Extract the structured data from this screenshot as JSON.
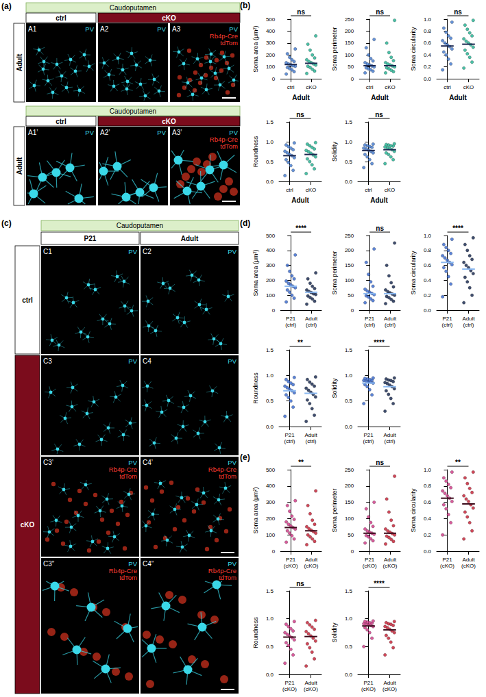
{
  "figure": {
    "a": {
      "letter": "(a)",
      "region": "Caudoputamen",
      "groups": [
        "ctrl",
        "cKO"
      ],
      "age": "Adult",
      "rows": [
        [
          {
            "id": "A1",
            "channels": [
              "PV"
            ]
          },
          {
            "id": "A2",
            "channels": [
              "PV"
            ]
          },
          {
            "id": "A3",
            "channels": [
              "PV",
              "Rb4p-Cre",
              "tdTom"
            ]
          }
        ],
        [
          {
            "id": "A1’",
            "channels": [
              "PV"
            ]
          },
          {
            "id": "A2’",
            "channels": [
              "PV"
            ]
          },
          {
            "id": "A3’",
            "channels": [
              "PV",
              "Rb4p-Cre",
              "tdTom"
            ]
          }
        ]
      ]
    },
    "b": {
      "letter": "(b)"
    },
    "c": {
      "letter": "(c)",
      "region": "Caudoputamen",
      "ages": [
        "P21",
        "Adult"
      ],
      "rows": [
        {
          "group": "ctrl",
          "cells": [
            {
              "id": "C1",
              "channels": [
                "PV"
              ]
            },
            {
              "id": "C2",
              "channels": [
                "PV"
              ]
            }
          ]
        },
        {
          "group": "cKO",
          "cells": [
            {
              "id": "C3",
              "channels": [
                "PV"
              ]
            },
            {
              "id": "C4",
              "channels": [
                "PV"
              ]
            }
          ]
        },
        {
          "group": "cKO",
          "cells": [
            {
              "id": "C3’",
              "channels": [
                "PV",
                "Rb4p-Cre",
                "tdTom"
              ]
            },
            {
              "id": "C4’",
              "channels": [
                "PV",
                "Rb4p-Cre",
                "tdTom"
              ]
            }
          ]
        },
        {
          "group": "cKO",
          "cells": [
            {
              "id": "C3”",
              "channels": [
                "PV",
                "Rb4p-Cre",
                "tdTom"
              ]
            },
            {
              "id": "C4”",
              "channels": [
                "PV",
                "Rb4p-Cre",
                "tdTom"
              ]
            }
          ]
        }
      ]
    },
    "d": {
      "letter": "(d)"
    },
    "e": {
      "letter": "(e)"
    }
  },
  "chart_data": [
    {
      "type": "scatter",
      "y_label": "Soma area (μm²)",
      "x_label": "Adult",
      "categories": [
        "ctrl",
        "cKO"
      ],
      "colors": [
        "#4a7fd0",
        "#2bb597"
      ],
      "values": [
        [
          40,
          60,
          75,
          85,
          95,
          105,
          110,
          118,
          125,
          135,
          145,
          160,
          180,
          210,
          250
        ],
        [
          45,
          65,
          80,
          95,
          105,
          115,
          125,
          135,
          145,
          160,
          175,
          200,
          240,
          290,
          360
        ]
      ],
      "means": [
        120,
        130
      ],
      "ylim": [
        0,
        500
      ],
      "yticks": [
        0,
        100,
        200,
        300,
        400,
        500
      ],
      "annotation": "ns"
    },
    {
      "type": "scatter",
      "y_label": "Soma perimeter",
      "x_label": "Adult",
      "categories": [
        "ctrl",
        "cKO"
      ],
      "colors": [
        "#4a7fd0",
        "#2bb597"
      ],
      "values": [
        [
          25,
          32,
          38,
          42,
          46,
          50,
          54,
          58,
          62,
          68,
          75,
          85,
          100,
          130,
          165
        ],
        [
          25,
          30,
          36,
          42,
          46,
          50,
          54,
          58,
          62,
          68,
          76,
          90,
          110,
          150,
          245
        ]
      ],
      "means": [
        55,
        55
      ],
      "ylim": [
        0,
        250
      ],
      "yticks": [
        0,
        50,
        100,
        150,
        200,
        250
      ],
      "annotation": "ns"
    },
    {
      "type": "scatter",
      "y_label": "Soma circularity",
      "x_label": "Adult",
      "categories": [
        "ctrl",
        "cKO"
      ],
      "colors": [
        "#4a7fd0",
        "#2bb597"
      ],
      "values": [
        [
          0.15,
          0.25,
          0.33,
          0.4,
          0.45,
          0.5,
          0.54,
          0.57,
          0.6,
          0.64,
          0.68,
          0.72,
          0.78,
          0.85,
          0.95
        ],
        [
          0.18,
          0.28,
          0.36,
          0.42,
          0.48,
          0.53,
          0.57,
          0.6,
          0.63,
          0.67,
          0.72,
          0.77,
          0.83,
          0.9,
          0.98
        ]
      ],
      "means": [
        0.55,
        0.58
      ],
      "ylim": [
        0,
        1
      ],
      "yticks": [
        {
          "value": 0,
          "label": "0.0"
        },
        0.2,
        0.4,
        0.6,
        0.8,
        {
          "value": 1,
          "label": "1.0"
        }
      ],
      "annotation": "ns"
    },
    {
      "type": "scatter",
      "y_label": "Roundness",
      "x_label": "Adult",
      "categories": [
        "ctrl",
        "cKO"
      ],
      "colors": [
        "#4a7fd0",
        "#2bb597"
      ],
      "values": [
        [
          0.15,
          0.28,
          0.4,
          0.48,
          0.55,
          0.6,
          0.65,
          0.68,
          0.72,
          0.76,
          0.8,
          0.84,
          0.88,
          0.92,
          0.97
        ],
        [
          0.2,
          0.32,
          0.42,
          0.5,
          0.57,
          0.62,
          0.67,
          0.71,
          0.75,
          0.78,
          0.82,
          0.86,
          0.9,
          0.94,
          0.98
        ]
      ],
      "means": [
        0.65,
        0.68
      ],
      "ylim": [
        0,
        1.5
      ],
      "yticks": [
        {
          "value": 0,
          "label": "0.0"
        },
        0.5,
        {
          "value": 1,
          "label": "1.0"
        },
        1.5
      ],
      "annotation": "ns"
    },
    {
      "type": "scatter",
      "y_label": "Solidity",
      "x_label": "Adult",
      "categories": [
        "ctrl",
        "cKO"
      ],
      "colors": [
        "#4a7fd0",
        "#2bb597"
      ],
      "values": [
        [
          0.35,
          0.45,
          0.55,
          0.62,
          0.68,
          0.72,
          0.76,
          0.79,
          0.82,
          0.84,
          0.86,
          0.88,
          0.9,
          0.92,
          0.94
        ],
        [
          0.45,
          0.55,
          0.62,
          0.68,
          0.72,
          0.76,
          0.8,
          0.83,
          0.85,
          0.87,
          0.89,
          0.9,
          0.92,
          0.93,
          0.95
        ]
      ],
      "means": [
        0.78,
        0.8
      ],
      "ylim": [
        0,
        1.5
      ],
      "yticks": [
        {
          "value": 0,
          "label": "0.0"
        },
        0.5,
        {
          "value": 1,
          "label": "1.0"
        },
        1.5
      ],
      "annotation": "ns"
    },
    {
      "type": "scatter",
      "y_label": "Soma area (μm²)",
      "categories": [
        "P21 (ctrl)",
        "Adult (ctrl)"
      ],
      "colors": [
        "#3f6fd0",
        "#1e2f55"
      ],
      "values": [
        [
          55,
          80,
          100,
          120,
          135,
          150,
          160,
          170,
          180,
          195,
          210,
          230,
          260,
          300,
          370
        ],
        [
          40,
          60,
          75,
          85,
          95,
          105,
          110,
          118,
          125,
          135,
          145,
          160,
          180,
          210,
          250
        ]
      ],
      "means": [
        160,
        120
      ],
      "ylim": [
        0,
        500
      ],
      "yticks": [
        0,
        100,
        200,
        300,
        400,
        500
      ],
      "annotation": "****"
    },
    {
      "type": "scatter",
      "y_label": "Soma perimeter",
      "categories": [
        "P21 (ctrl)",
        "Adult (ctrl)"
      ],
      "colors": [
        "#3f6fd0",
        "#1e2f55"
      ],
      "values": [
        [
          25,
          32,
          38,
          44,
          48,
          52,
          56,
          60,
          64,
          70,
          80,
          95,
          120,
          160,
          205
        ],
        [
          22,
          30,
          36,
          42,
          46,
          50,
          54,
          58,
          62,
          68,
          78,
          92,
          115,
          150,
          225
        ]
      ],
      "means": [
        55,
        55
      ],
      "ylim": [
        0,
        250
      ],
      "yticks": [
        0,
        50,
        100,
        150,
        200,
        250
      ],
      "annotation": "ns"
    },
    {
      "type": "scatter",
      "y_label": "Soma circularity",
      "categories": [
        "P21 (ctrl)",
        "Adult (ctrl)"
      ],
      "colors": [
        "#3f6fd0",
        "#1e2f55"
      ],
      "values": [
        [
          0.18,
          0.35,
          0.45,
          0.52,
          0.57,
          0.61,
          0.64,
          0.67,
          0.7,
          0.73,
          0.76,
          0.8,
          0.84,
          0.88,
          0.95
        ],
        [
          0.1,
          0.2,
          0.3,
          0.38,
          0.44,
          0.49,
          0.53,
          0.57,
          0.6,
          0.64,
          0.68,
          0.73,
          0.8,
          0.88,
          0.97
        ]
      ],
      "means": [
        0.64,
        0.55
      ],
      "ylim": [
        0,
        1
      ],
      "yticks": [
        {
          "value": 0,
          "label": "0.0"
        },
        0.2,
        0.4,
        0.6,
        0.8,
        {
          "value": 1,
          "label": "1.0"
        }
      ],
      "annotation": "****"
    },
    {
      "type": "scatter",
      "y_label": "Roundness",
      "categories": [
        "P21 (ctrl)",
        "Adult (ctrl)"
      ],
      "colors": [
        "#3f6fd0",
        "#1e2f55"
      ],
      "values": [
        [
          0.2,
          0.38,
          0.5,
          0.57,
          0.62,
          0.66,
          0.7,
          0.73,
          0.76,
          0.79,
          0.82,
          0.85,
          0.88,
          0.92,
          0.96
        ],
        [
          0.1,
          0.22,
          0.35,
          0.45,
          0.52,
          0.58,
          0.63,
          0.67,
          0.71,
          0.75,
          0.79,
          0.83,
          0.87,
          0.92,
          0.97
        ]
      ],
      "means": [
        0.7,
        0.65
      ],
      "ylim": [
        0,
        1.5
      ],
      "yticks": [
        {
          "value": 0,
          "label": "0.0"
        },
        0.5,
        {
          "value": 1,
          "label": "1.0"
        },
        1.5
      ],
      "annotation": "**"
    },
    {
      "type": "scatter",
      "y_label": "Solidity",
      "categories": [
        "P21 (ctrl)",
        "Adult (ctrl)"
      ],
      "colors": [
        "#3f6fd0",
        "#1e2f55"
      ],
      "values": [
        [
          0.45,
          0.62,
          0.72,
          0.78,
          0.82,
          0.85,
          0.87,
          0.88,
          0.89,
          0.9,
          0.91,
          0.92,
          0.93,
          0.94,
          0.95
        ],
        [
          0.3,
          0.45,
          0.55,
          0.63,
          0.7,
          0.74,
          0.78,
          0.81,
          0.84,
          0.86,
          0.88,
          0.9,
          0.91,
          0.93,
          0.95
        ]
      ],
      "means": [
        0.85,
        0.78
      ],
      "ylim": [
        0,
        1.5
      ],
      "yticks": [
        {
          "value": 0,
          "label": "0.0"
        },
        0.5,
        {
          "value": 1,
          "label": "1.0"
        },
        1.5
      ],
      "annotation": "****"
    },
    {
      "type": "scatter",
      "y_label": "Soma area (μm²)",
      "categories": [
        "P21 (cKO)",
        "Adult (cKO)"
      ],
      "colors": [
        "#d0408a",
        "#c8283c"
      ],
      "values": [
        [
          55,
          75,
          95,
          110,
          125,
          135,
          145,
          155,
          165,
          180,
          195,
          215,
          245,
          280,
          310
        ],
        [
          40,
          60,
          75,
          88,
          100,
          110,
          120,
          128,
          138,
          150,
          165,
          190,
          230,
          280,
          370
        ]
      ],
      "means": [
        145,
        125
      ],
      "ylim": [
        0,
        500
      ],
      "yticks": [
        0,
        100,
        200,
        300,
        400,
        500
      ],
      "annotation": "**"
    },
    {
      "type": "scatter",
      "y_label": "Soma perimeter",
      "categories": [
        "P21 (cKO)",
        "Adult (cKO)"
      ],
      "colors": [
        "#d0408a",
        "#c8283c"
      ],
      "values": [
        [
          25,
          32,
          38,
          44,
          48,
          52,
          55,
          58,
          62,
          68,
          76,
          88,
          105,
          130,
          150
        ],
        [
          22,
          30,
          36,
          42,
          46,
          50,
          54,
          58,
          62,
          68,
          78,
          95,
          120,
          160,
          230
        ]
      ],
      "means": [
        55,
        55
      ],
      "ylim": [
        0,
        250
      ],
      "yticks": [
        0,
        50,
        100,
        150,
        200,
        250
      ],
      "annotation": "ns"
    },
    {
      "type": "scatter",
      "y_label": "Soma circularity",
      "categories": [
        "P21 (cKO)",
        "Adult (cKO)"
      ],
      "colors": [
        "#d0408a",
        "#c8283c"
      ],
      "values": [
        [
          0.2,
          0.35,
          0.45,
          0.52,
          0.57,
          0.61,
          0.65,
          0.68,
          0.71,
          0.74,
          0.78,
          0.82,
          0.86,
          0.9,
          0.97
        ],
        [
          0.15,
          0.25,
          0.35,
          0.42,
          0.48,
          0.53,
          0.57,
          0.61,
          0.64,
          0.68,
          0.72,
          0.77,
          0.83,
          0.9,
          0.97
        ]
      ],
      "means": [
        0.65,
        0.58
      ],
      "ylim": [
        0,
        1
      ],
      "yticks": [
        {
          "value": 0,
          "label": "0.0"
        },
        0.2,
        0.4,
        0.6,
        0.8,
        {
          "value": 1,
          "label": "1.0"
        }
      ],
      "annotation": "**"
    },
    {
      "type": "scatter",
      "y_label": "Roundness",
      "categories": [
        "P21 (cKO)",
        "Adult (cKO)"
      ],
      "colors": [
        "#d0408a",
        "#c8283c"
      ],
      "values": [
        [
          0.2,
          0.35,
          0.45,
          0.52,
          0.57,
          0.62,
          0.66,
          0.69,
          0.72,
          0.75,
          0.78,
          0.82,
          0.86,
          0.9,
          0.95
        ],
        [
          0.15,
          0.28,
          0.4,
          0.48,
          0.55,
          0.6,
          0.65,
          0.69,
          0.73,
          0.77,
          0.81,
          0.85,
          0.89,
          0.93,
          0.97
        ]
      ],
      "means": [
        0.67,
        0.68
      ],
      "ylim": [
        0,
        1.5
      ],
      "yticks": [
        {
          "value": 0,
          "label": "0.0"
        },
        0.5,
        {
          "value": 1,
          "label": "1.0"
        },
        1.5
      ],
      "annotation": "ns"
    },
    {
      "type": "scatter",
      "y_label": "Solidity",
      "categories": [
        "P21 (cKO)",
        "Adult (cKO)"
      ],
      "colors": [
        "#d0408a",
        "#c8283c"
      ],
      "values": [
        [
          0.5,
          0.65,
          0.75,
          0.8,
          0.84,
          0.86,
          0.88,
          0.89,
          0.9,
          0.91,
          0.92,
          0.93,
          0.94,
          0.95,
          0.96
        ],
        [
          0.35,
          0.48,
          0.58,
          0.65,
          0.7,
          0.75,
          0.78,
          0.81,
          0.84,
          0.86,
          0.88,
          0.9,
          0.91,
          0.93,
          0.95
        ]
      ],
      "means": [
        0.87,
        0.8
      ],
      "ylim": [
        0,
        1.5
      ],
      "yticks": [
        {
          "value": 0,
          "label": "0.0"
        },
        0.5,
        {
          "value": 1,
          "label": "1.0"
        },
        1.5
      ],
      "annotation": "****"
    }
  ]
}
